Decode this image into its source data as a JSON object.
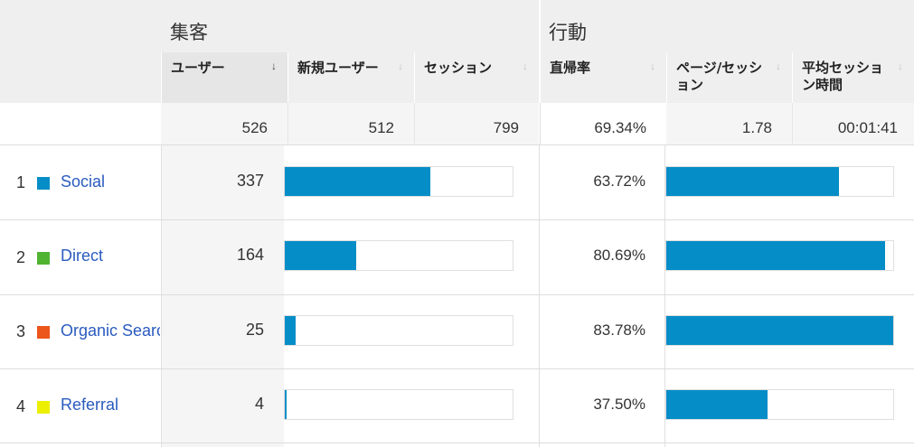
{
  "groups": {
    "acquisition": "集客",
    "behavior": "行動"
  },
  "columns": {
    "users": "ユーザー",
    "new_users": "新規ユーザー",
    "sessions": "セッション",
    "bounce_rate": "直帰率",
    "pages_per_session": "ページ/セッション",
    "avg_session_duration": "平均セッション時間"
  },
  "totals": {
    "users": "526",
    "new_users": "512",
    "sessions": "799",
    "bounce_rate": "69.34%",
    "pages_per_session": "1.78",
    "avg_session_duration": "00:01:41"
  },
  "rows": [
    {
      "num": "1",
      "channel": "Social",
      "color": "#058dc7",
      "users": "337",
      "users_share": 0.6407,
      "bounce_rate": "63.72%",
      "bounce_share": 0.7606
    },
    {
      "num": "2",
      "channel": "Direct",
      "color": "#50b432",
      "users": "164",
      "users_share": 0.3118,
      "bounce_rate": "80.69%",
      "bounce_share": 0.9631
    },
    {
      "num": "3",
      "channel": "Organic Search",
      "color": "#ed561b",
      "users": "25",
      "users_share": 0.0475,
      "bounce_rate": "83.78%",
      "bounce_share": 1.0
    },
    {
      "num": "4",
      "channel": "Referral",
      "color": "#edef00",
      "users": "4",
      "users_share": 0.0076,
      "bounce_rate": "37.50%",
      "bounce_share": 0.4476
    }
  ],
  "colors": {
    "bar": "#058dc7",
    "link": "#2a5bbf"
  }
}
